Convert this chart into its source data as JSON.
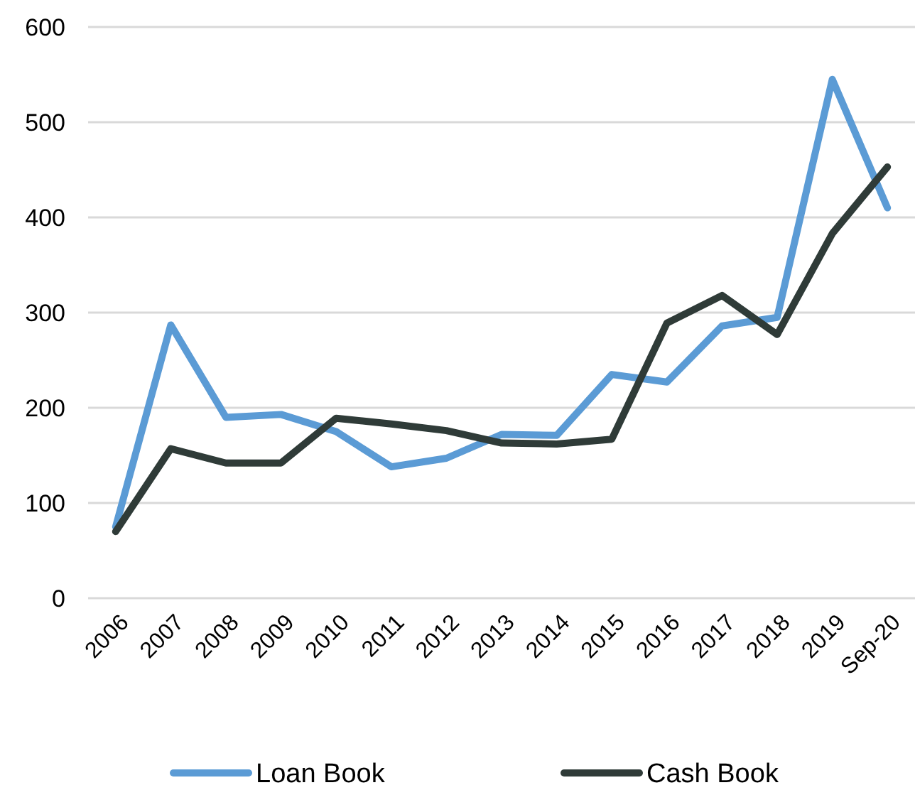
{
  "chart_data": {
    "type": "line",
    "categories": [
      "2006",
      "2007",
      "2008",
      "2009",
      "2010",
      "2011",
      "2012",
      "2013",
      "2014",
      "2015",
      "2016",
      "2017",
      "2018",
      "2019",
      "Sep-20"
    ],
    "series": [
      {
        "name": "Loan Book",
        "color": "#5b9bd5",
        "values": [
          75,
          287,
          190,
          193,
          175,
          138,
          147,
          172,
          171,
          235,
          227,
          286,
          295,
          545,
          410
        ]
      },
      {
        "name": "Cash Book",
        "color": "#2f3b38",
        "values": [
          70,
          157,
          142,
          142,
          189,
          183,
          176,
          163,
          162,
          167,
          289,
          318,
          277,
          383,
          453
        ]
      }
    ],
    "ylim": [
      0,
      600
    ],
    "yticks": [
      0,
      100,
      200,
      300,
      400,
      500,
      600
    ],
    "grid": "y",
    "legend": "bottom",
    "marker": "none",
    "line_style": "solid"
  }
}
